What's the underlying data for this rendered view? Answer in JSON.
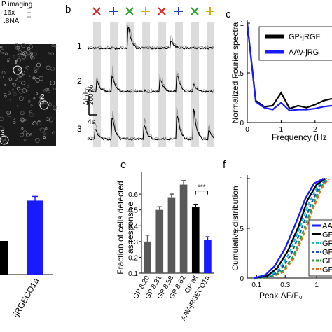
{
  "panel_a": {
    "header_line1": "P imaging",
    "obj_mag": "16x",
    "obj_na": ".8NA",
    "cell_labels": [
      "1",
      "2",
      "3"
    ]
  },
  "panel_b": {
    "label": "b",
    "trace_ids": [
      "1",
      "2",
      "3"
    ],
    "scale_y": "200 %",
    "scale_y_unit": "ΔF/F₀",
    "scale_x": "4s",
    "stim_colors": [
      "#d62728",
      "#1f3fbf",
      "#2ca02c",
      "#d4b000",
      "#d62728",
      "#1f3fbf",
      "#2ca02c",
      "#d4b000"
    ]
  },
  "chart_data": [
    {
      "panel": "c",
      "type": "line",
      "xlabel": "Frequency (Hz",
      "ylabel": "Normalized Fourier spectra",
      "xticks": [
        "0",
        "1",
        "2"
      ],
      "yticks": [
        "0",
        "0.5",
        "1"
      ],
      "ylim": [
        0,
        1
      ],
      "legend_position": "top-right",
      "x": [
        0,
        0.25,
        0.5,
        0.75,
        1.0,
        1.25,
        1.5,
        1.75,
        2.0,
        2.25,
        2.5
      ],
      "series": [
        {
          "name": "GP-jRGE",
          "color": "#000000",
          "values": [
            1.0,
            0.22,
            0.16,
            0.17,
            0.3,
            0.14,
            0.17,
            0.15,
            0.18,
            0.22,
            0.24
          ]
        },
        {
          "name": "AAV-jRG",
          "color": "#1a1aff",
          "values": [
            1.0,
            0.21,
            0.15,
            0.13,
            0.2,
            0.12,
            0.13,
            0.13,
            0.14,
            0.16,
            0.17
          ]
        }
      ]
    },
    {
      "panel": "d",
      "type": "bar",
      "xlabel": "-jRGECO1a",
      "categories": [
        "",
        ""
      ],
      "values": [
        0.3,
        0.66
      ],
      "colors": [
        "#000000",
        "#1a1aff"
      ]
    },
    {
      "panel": "e",
      "type": "bar",
      "ylabel": "Fraction of cells detected as responsive",
      "categories": [
        "GP 8.20",
        "GP 8.31",
        "GP 8.58",
        "GP 8.62",
        "GP all",
        "AAV-jRGECO1a"
      ],
      "values": [
        0.3,
        0.5,
        0.58,
        0.66,
        0.52,
        0.31
      ],
      "errors": [
        0.04,
        0.02,
        0.02,
        0.025,
        0.015,
        0.02
      ],
      "colors": [
        "#595959",
        "#595959",
        "#595959",
        "#595959",
        "#000000",
        "#1a1aff"
      ],
      "yticks": [
        "0.1",
        "0.2",
        "0.3",
        "0.4",
        "0.5",
        "0.6"
      ],
      "ylim": [
        0.1,
        0.72
      ],
      "annotation": "***"
    },
    {
      "panel": "f",
      "type": "line",
      "xlabel": "Peak ΔF/F₀",
      "ylabel": "Cumulative distribution",
      "xticks": [
        "0.1",
        "0.3",
        "1"
      ],
      "yticks": [
        "0",
        "0.5",
        "1"
      ],
      "ylim": [
        0,
        1
      ],
      "xscale": "log",
      "legend_position": "bottom-right",
      "legend_labels": [
        "AA",
        "GF",
        "GF",
        "GF",
        "GF",
        "GF"
      ],
      "series": [
        {
          "color": "#1a1aff",
          "style": "solid",
          "x": [
            0.09,
            0.14,
            0.2,
            0.3,
            0.45,
            0.65,
            0.9,
            1.3
          ],
          "y": [
            0,
            0.03,
            0.12,
            0.3,
            0.55,
            0.8,
            0.95,
            1.0
          ]
        },
        {
          "color": "#000000",
          "style": "solid",
          "x": [
            0.09,
            0.15,
            0.22,
            0.33,
            0.5,
            0.7,
            1.0,
            1.4
          ],
          "y": [
            0,
            0.02,
            0.1,
            0.27,
            0.52,
            0.78,
            0.94,
            1.0
          ]
        },
        {
          "color": "#17becf",
          "style": "dashed",
          "x": [
            0.1,
            0.16,
            0.24,
            0.35,
            0.52,
            0.75,
            1.05,
            1.45
          ],
          "y": [
            0,
            0.02,
            0.09,
            0.25,
            0.5,
            0.76,
            0.93,
            1.0
          ]
        },
        {
          "color": "#1f4fbf",
          "style": "dashed",
          "x": [
            0.1,
            0.17,
            0.25,
            0.37,
            0.55,
            0.8,
            1.1,
            1.5
          ],
          "y": [
            0,
            0.02,
            0.08,
            0.23,
            0.48,
            0.74,
            0.92,
            1.0
          ]
        },
        {
          "color": "#2ca02c",
          "style": "dashed",
          "x": [
            0.11,
            0.18,
            0.27,
            0.4,
            0.58,
            0.85,
            1.15,
            1.55
          ],
          "y": [
            0,
            0.02,
            0.07,
            0.21,
            0.45,
            0.72,
            0.91,
            1.0
          ]
        },
        {
          "color": "#e6701a",
          "style": "dashed",
          "x": [
            0.11,
            0.19,
            0.28,
            0.42,
            0.6,
            0.88,
            1.2,
            1.6
          ],
          "y": [
            0,
            0.02,
            0.06,
            0.2,
            0.43,
            0.7,
            0.9,
            1.0
          ]
        }
      ]
    }
  ],
  "panel_labels": {
    "c": "c",
    "e": "e",
    "f": "f"
  }
}
